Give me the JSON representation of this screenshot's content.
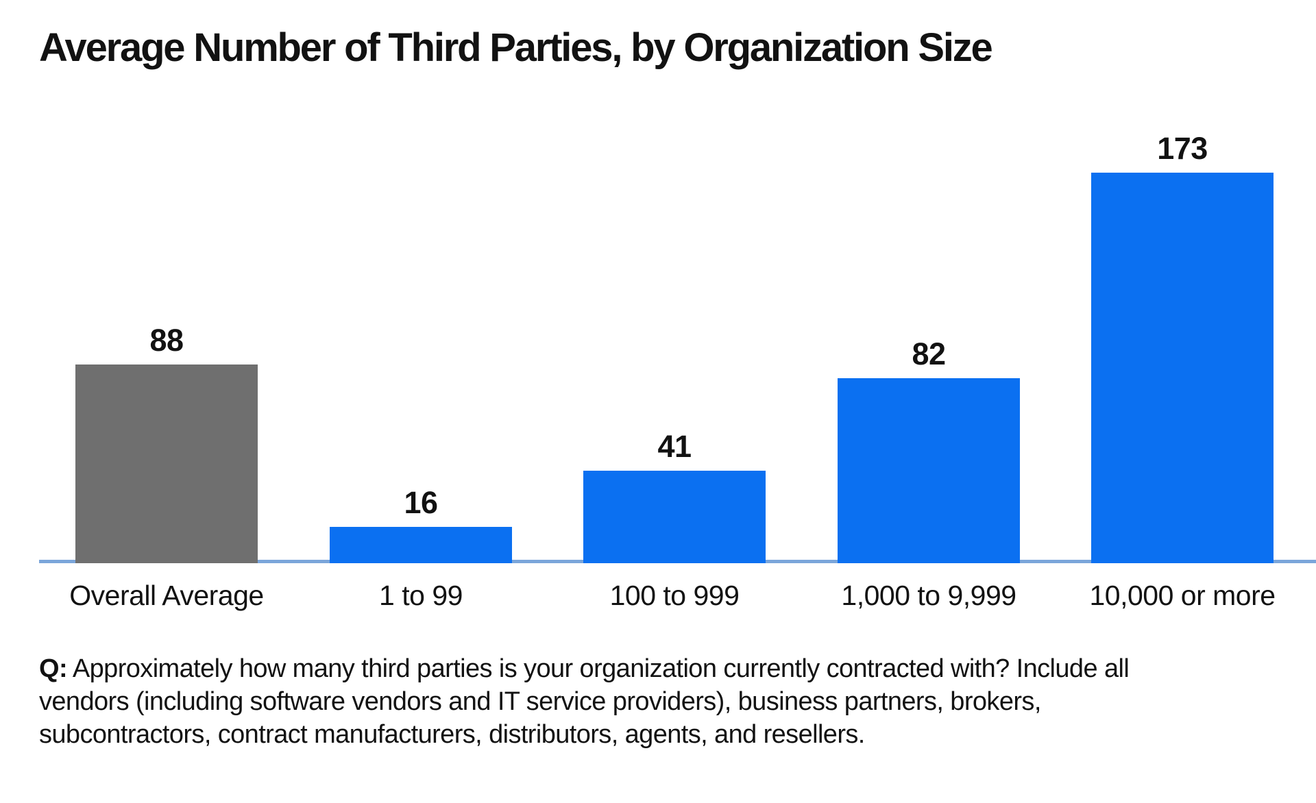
{
  "chart_data": {
    "type": "bar",
    "title": "Average Number of Third Parties, by Organization Size",
    "categories": [
      "Overall Average",
      "1 to 99",
      "100 to 999",
      "1,000 to 9,999",
      "10,000 or more"
    ],
    "values": [
      88,
      16,
      41,
      82,
      173
    ],
    "data_labels": [
      "88",
      "16",
      "41",
      "82",
      "173"
    ],
    "bar_colors": [
      "#6f6f6f",
      "#0b70f1",
      "#0b70f1",
      "#0b70f1",
      "#0b70f1"
    ],
    "xlabel": "",
    "ylabel": "",
    "ylim": [
      0,
      190
    ],
    "grid": false,
    "legend": false,
    "value_labels_position": "above-bars",
    "axis_line_color": "#7ba6da",
    "background_color": "#ffffff",
    "text_color": "#121212"
  },
  "footnote": {
    "prefix": "Q:",
    "lines": [
      "Approximately how many third parties is your organization currently contracted with? Include all",
      "vendors (including software vendors and IT service providers), business partners, brokers,",
      "subcontractors, contract manufacturers, distributors, agents, and resellers."
    ]
  }
}
